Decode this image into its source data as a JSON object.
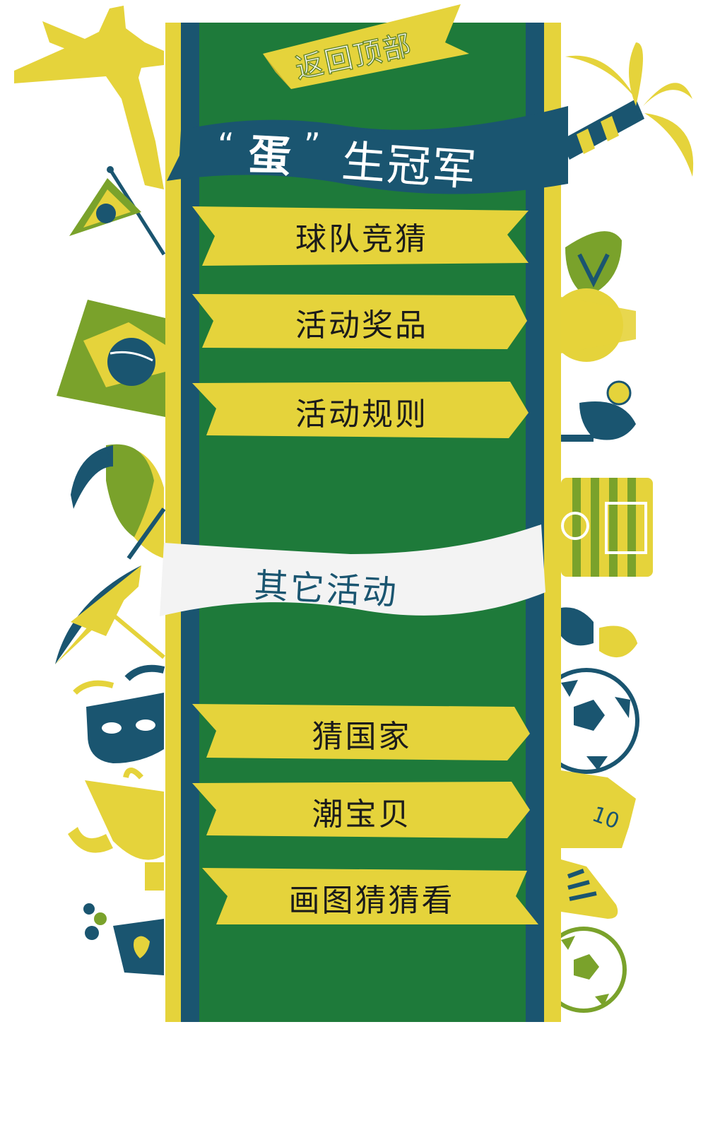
{
  "header": {
    "back_to_top": "返回顶部",
    "title_quote_open": "“",
    "title_emphasis": "蛋",
    "title_quote_close": "”",
    "title_rest": "生冠军"
  },
  "menu": {
    "items": [
      {
        "label": "球队竞猜"
      },
      {
        "label": "活动奖品"
      },
      {
        "label": "活动规则"
      }
    ]
  },
  "other": {
    "heading": "其它活动",
    "items": [
      {
        "label": "猜国家"
      },
      {
        "label": "潮宝贝"
      },
      {
        "label": "画图猜猜看"
      }
    ]
  },
  "colors": {
    "yellow": "#e5d33b",
    "navy": "#1a5570",
    "green": "#1e7a3a",
    "olive": "#7aa22b",
    "white": "#f3f3f3"
  },
  "icons": [
    "statue-icon",
    "palm-tree-icon",
    "pennant-flag-icon",
    "brazil-flag-icon",
    "flip-flop-icon",
    "sun-icon",
    "toucan-icon",
    "drink-icon",
    "beach-umbrella-icon",
    "football-pitch-icon",
    "sunglasses-icon",
    "carnival-mask-icon",
    "soccer-ball-icon",
    "jersey-icon",
    "trophy-icon",
    "cleat-icon",
    "coffee-cup-icon"
  ]
}
